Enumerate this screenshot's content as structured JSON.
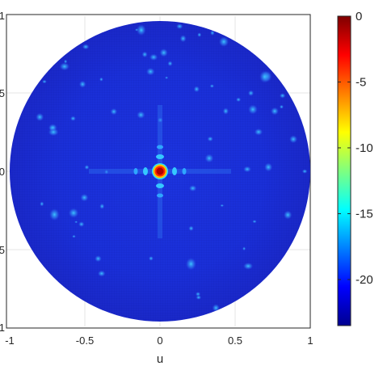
{
  "chart_data": {
    "type": "heatmap",
    "title": "",
    "xlabel": "u",
    "ylabel": "",
    "xlim": [
      -1,
      1
    ],
    "ylim": [
      -1,
      1
    ],
    "x_ticks": [
      "-1",
      "-0.5",
      "0",
      "0.5",
      "1"
    ],
    "y_ticks_visible": [
      "1",
      "5",
      "0",
      "5",
      "1"
    ],
    "domain": "unit circle u^2 + v^2 <= 1",
    "background_level_db": -22,
    "colorbar": {
      "range": [
        -23.5,
        0
      ],
      "ticks": [
        0,
        -5,
        -10,
        -15,
        -20
      ],
      "tick_labels": [
        "0",
        "-5",
        "-10",
        "-15",
        "-20"
      ],
      "colormap": "jet"
    },
    "main_beam": {
      "u": 0,
      "v": 0,
      "peak_db": 0
    },
    "grid": true,
    "legend": "colorbar-right"
  },
  "colors": {
    "background_blue": "#1a2ed6",
    "beam_core": "#7f0000",
    "beam_ring": "#ffc000",
    "axis": "#262626"
  }
}
